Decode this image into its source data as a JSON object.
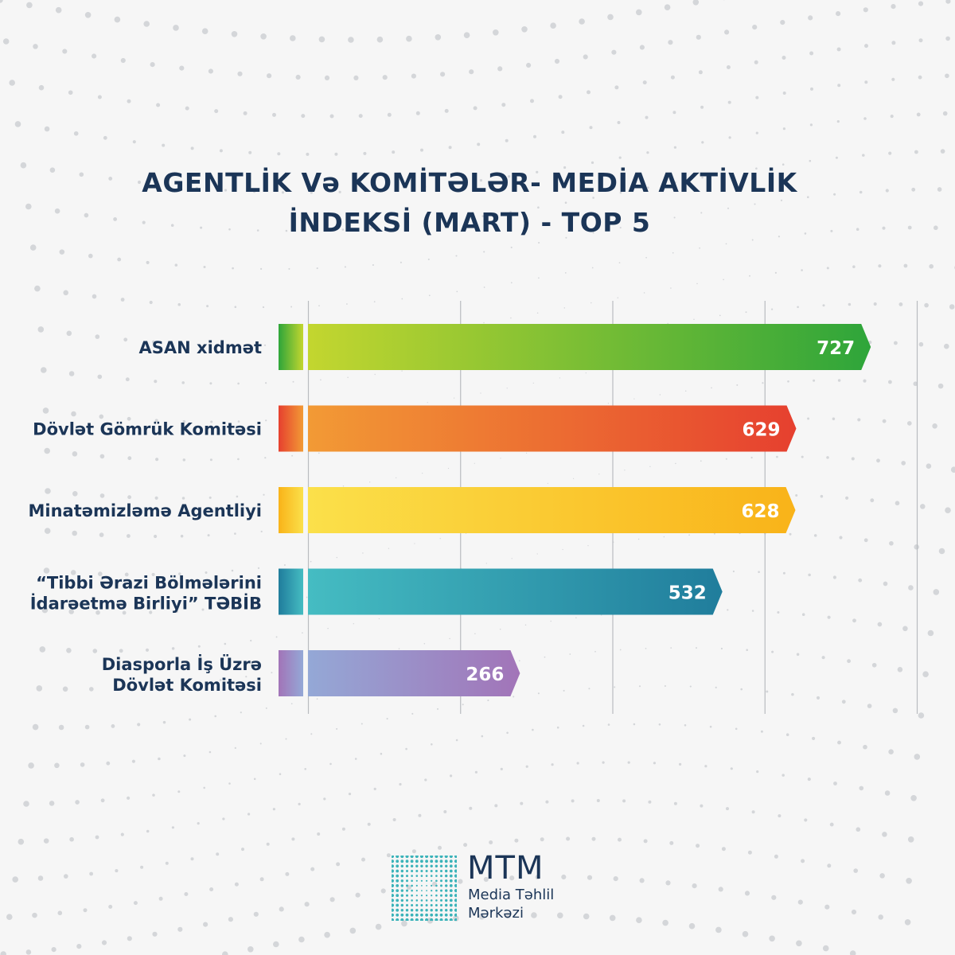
{
  "title": {
    "line1": "AGENTLİK Və KOMİTƏLƏR- MEDİA AKTİVLİK",
    "line2": "İNDEKSİ (MART) - TOP 5"
  },
  "chart_data": {
    "type": "bar",
    "orientation": "horizontal",
    "categories": [
      [
        "ASAN xidmət"
      ],
      [
        "Dövlət Gömrük Komitəsi"
      ],
      [
        "Minatəmizləmə Agentliyi"
      ],
      [
        "“Tibbi Ərazi Bölmələrini",
        "İdarəetmə Birliyi” TƏBİB"
      ],
      [
        "Diasporla İş Üzrə",
        "Dövlət Komitəsi"
      ]
    ],
    "values": [
      727,
      629,
      628,
      532,
      266
    ],
    "xlim": [
      0,
      800
    ],
    "grid": true,
    "bar_colors": [
      [
        "#c3d62f",
        "#2ea53a"
      ],
      [
        "#f29a35",
        "#e6402f"
      ],
      [
        "#fbe04a",
        "#f9b319"
      ],
      [
        "#45bcc2",
        "#207d9c"
      ],
      [
        "#94a8d6",
        "#a274b8"
      ]
    ],
    "label_color": "#1b3557"
  },
  "logo": {
    "name": "MTM",
    "sub1": "Media Təhlil",
    "sub2": "Mərkəzi"
  },
  "colors": {
    "title": "#1b3557",
    "gridline": "#b9bcc0",
    "logo_mark": "#3bb3b9"
  }
}
